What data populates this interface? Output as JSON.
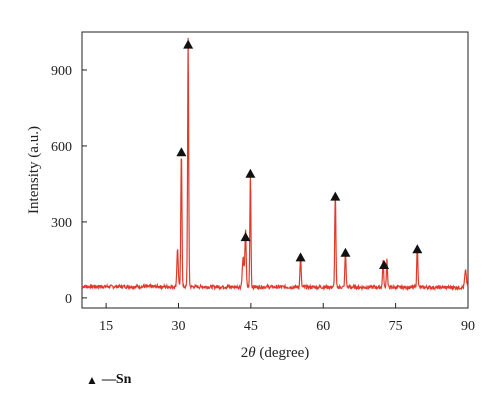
{
  "chart_data": {
    "type": "line",
    "xlabel_italic": "θ",
    "xlabel_prefix": "2",
    "xlabel_suffix": " (degree)",
    "ylabel": "Intensity (a.u.)",
    "xlim": [
      10,
      90
    ],
    "ylim": [
      -40,
      1050
    ],
    "xticks": [
      15,
      30,
      45,
      60,
      75,
      90
    ],
    "yticks": [
      0,
      300,
      600,
      900
    ],
    "line_color": "#e03a2a",
    "baseline": 45,
    "peaks": [
      {
        "x": 29.8,
        "y": 150,
        "w": 0.2
      },
      {
        "x": 30.6,
        "y": 540,
        "w": 0.16
      },
      {
        "x": 32.0,
        "y": 980,
        "w": 0.16
      },
      {
        "x": 43.9,
        "y": 230,
        "w": 0.18
      },
      {
        "x": 43.4,
        "y": 115,
        "w": 0.25
      },
      {
        "x": 44.9,
        "y": 445,
        "w": 0.15
      },
      {
        "x": 55.3,
        "y": 120,
        "w": 0.17
      },
      {
        "x": 62.5,
        "y": 370,
        "w": 0.16
      },
      {
        "x": 64.6,
        "y": 145,
        "w": 0.17
      },
      {
        "x": 72.4,
        "y": 105,
        "w": 0.16
      },
      {
        "x": 73.2,
        "y": 110,
        "w": 0.16
      },
      {
        "x": 79.5,
        "y": 165,
        "w": 0.17
      },
      {
        "x": 89.5,
        "y": 65,
        "w": 0.25
      }
    ],
    "markers": [
      {
        "x": 30.6,
        "y": 575
      },
      {
        "x": 32.0,
        "y": 1000
      },
      {
        "x": 43.9,
        "y": 240
      },
      {
        "x": 44.9,
        "y": 490
      },
      {
        "x": 55.3,
        "y": 160
      },
      {
        "x": 62.5,
        "y": 400
      },
      {
        "x": 64.6,
        "y": 178
      },
      {
        "x": 72.6,
        "y": 130
      },
      {
        "x": 79.5,
        "y": 192
      }
    ],
    "legend": {
      "symbol": "▲",
      "label": "—Sn"
    }
  }
}
